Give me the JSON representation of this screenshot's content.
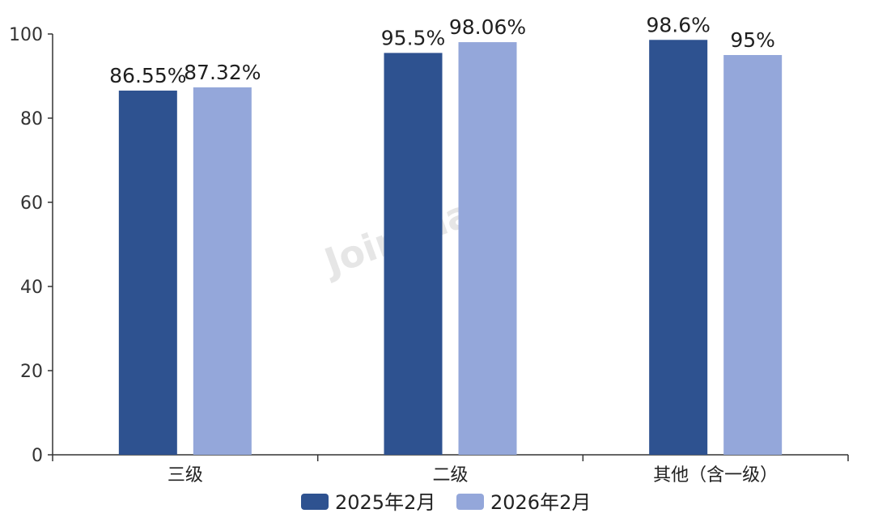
{
  "chart_data": {
    "type": "bar",
    "categories": [
      "三级",
      "二级",
      "其他（含一级）"
    ],
    "series": [
      {
        "name": "2025年2月",
        "values": [
          86.55,
          95.5,
          98.6
        ],
        "labels": [
          "86.55%",
          "95.5%",
          "98.6%"
        ],
        "color": "#2e5290"
      },
      {
        "name": "2026年2月",
        "values": [
          87.32,
          98.06,
          95
        ],
        "labels": [
          "87.32%",
          "98.06%",
          "95%"
        ],
        "color": "#94a7da"
      }
    ],
    "ylim": [
      0,
      100
    ],
    "yticks": [
      0,
      20,
      40,
      60,
      80,
      100
    ],
    "legend_position": "bottom-center",
    "grid": false,
    "watermark": "Joinchain"
  }
}
